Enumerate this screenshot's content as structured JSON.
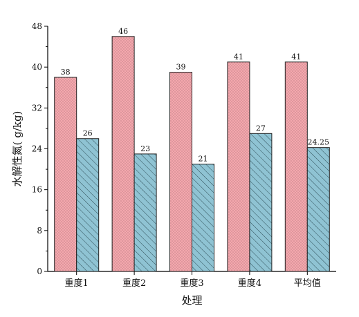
{
  "chart_data": {
    "type": "bar",
    "title": "",
    "xlabel": "处理",
    "ylabel": "水解性氮(    g/kg)",
    "categories": [
      "重度1",
      "重度2",
      "重度3",
      "重度4",
      "平均值"
    ],
    "series": [
      {
        "values": [
          38,
          46,
          39,
          41,
          41
        ],
        "value_labels": [
          "38",
          "46",
          "39",
          "41",
          "41"
        ],
        "color": "#f4a7ad",
        "pattern": "dots"
      },
      {
        "values": [
          26,
          23,
          21,
          27,
          24.25
        ],
        "value_labels": [
          "26",
          "23",
          "21",
          "27",
          "24.25"
        ],
        "color": "#8fc3d3",
        "pattern": "diagonal-hatch"
      }
    ],
    "ylim": [
      0,
      48
    ],
    "yticks": [
      0,
      8,
      16,
      24,
      32,
      40,
      48
    ],
    "grid": false,
    "legend": "none"
  }
}
